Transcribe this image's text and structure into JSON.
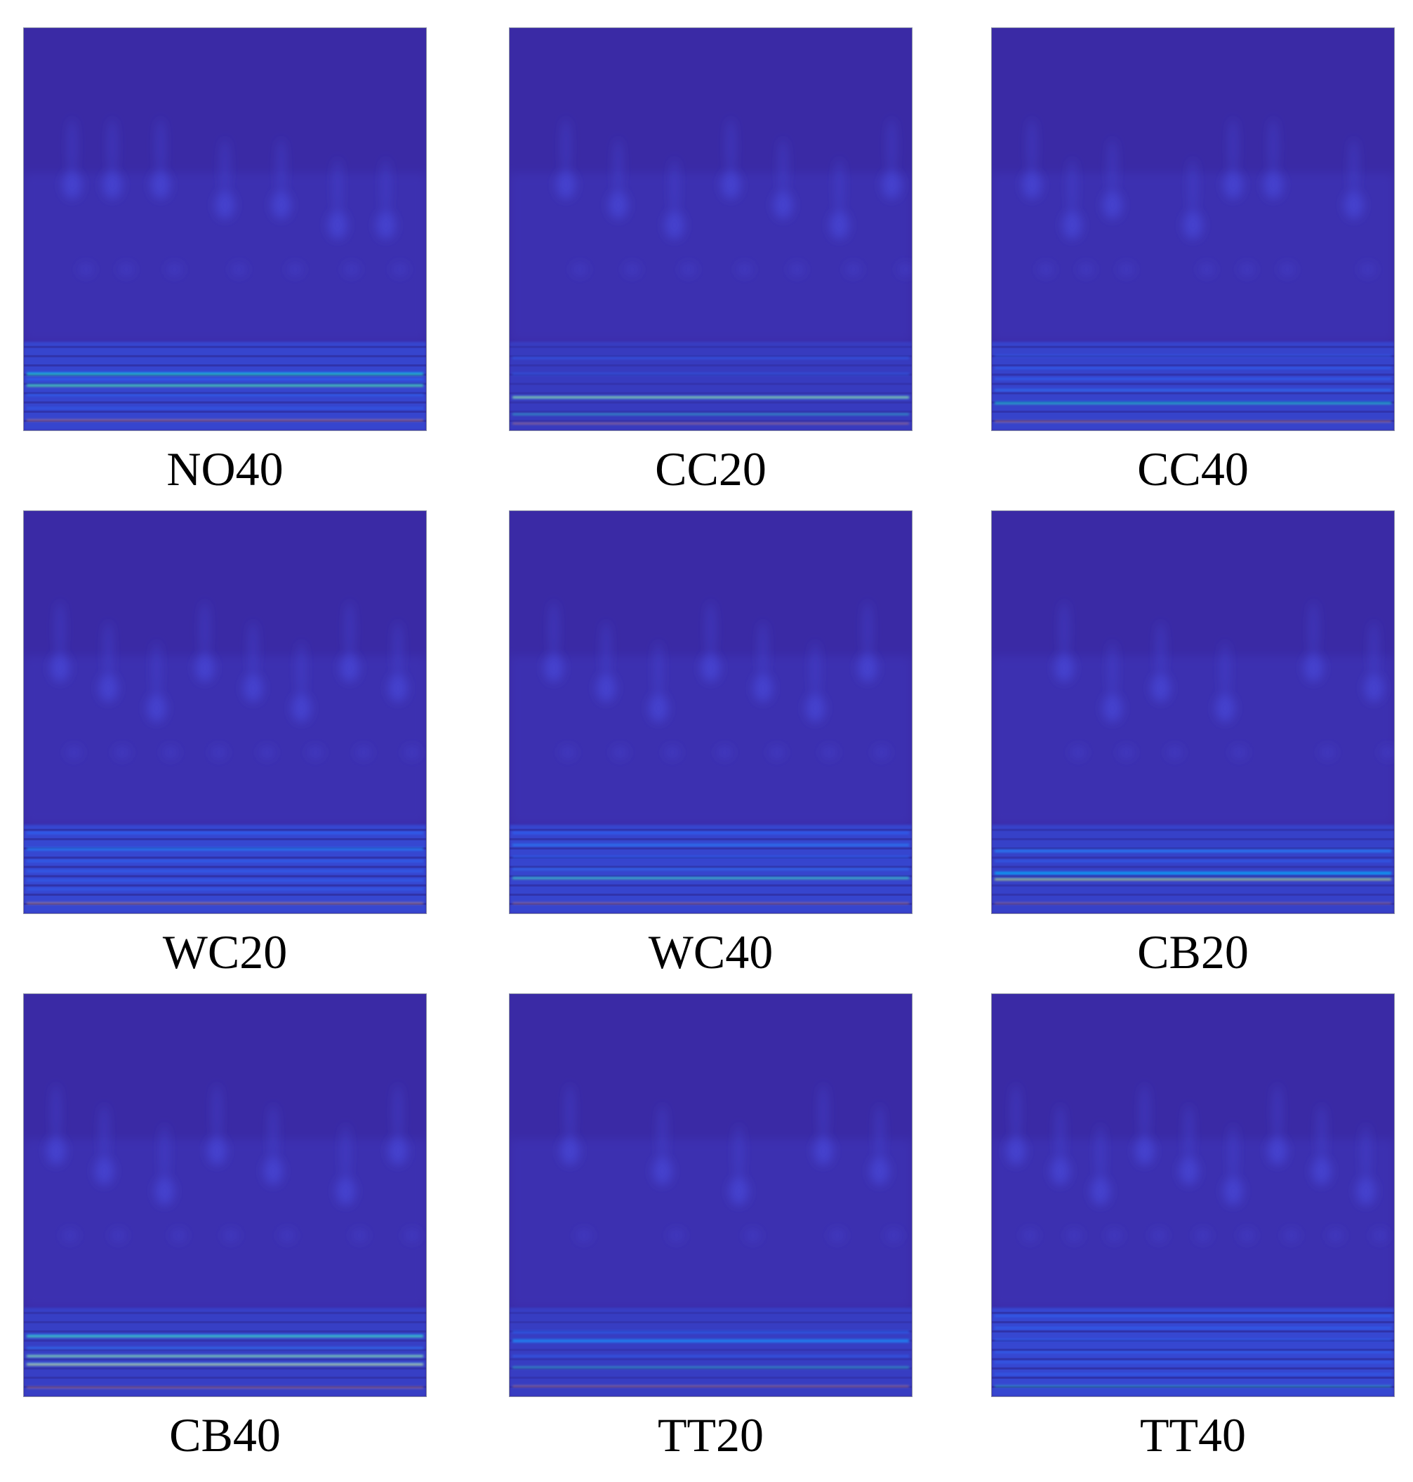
{
  "figure": {
    "panels": [
      {
        "label": "NO40",
        "rings": [
          0.22,
          0.5,
          0.78,
          0.34,
          0.64,
          0.9,
          0.12
        ],
        "band_layer": 0.7,
        "fine_layer": 0.55,
        "bands": [
          {
            "y": 0.859,
            "w": 0.006,
            "color": "#00a8ff",
            "opacity": 0.9
          },
          {
            "y": 0.861,
            "w": 0.0035,
            "color": "#2fd2a2",
            "opacity": 0.9
          },
          {
            "y": 0.873,
            "w": 0.004,
            "color": "#2b6cff",
            "opacity": 0.85
          },
          {
            "y": 0.888,
            "w": 0.006,
            "color": "#00a8ff",
            "opacity": 0.9
          },
          {
            "y": 0.889,
            "w": 0.0035,
            "color": "#5fe07a",
            "opacity": 0.95
          },
          {
            "y": 0.912,
            "w": 0.004,
            "color": "#2b6cff",
            "opacity": 0.7
          },
          {
            "y": 0.945,
            "w": 0.004,
            "color": "#2b6cff",
            "opacity": 0.55
          },
          {
            "y": 0.975,
            "w": 0.0025,
            "color": "#ff9a5a",
            "opacity": 0.8
          }
        ]
      },
      {
        "label": "CC20",
        "rings": [
          0.14,
          0.27,
          0.41,
          0.55,
          0.68,
          0.82,
          0.95
        ],
        "band_layer": 0.45,
        "fine_layer": 0.35,
        "bands": [
          {
            "y": 0.82,
            "w": 0.004,
            "color": "#2b6cff",
            "opacity": 0.6
          },
          {
            "y": 0.86,
            "w": 0.004,
            "color": "#2b6cff",
            "opacity": 0.6
          },
          {
            "y": 0.918,
            "w": 0.006,
            "color": "#00b4ff",
            "opacity": 0.9
          },
          {
            "y": 0.918,
            "w": 0.003,
            "color": "#b8f05a",
            "opacity": 0.95
          },
          {
            "y": 0.96,
            "w": 0.003,
            "color": "#2fd2c2",
            "opacity": 0.85
          },
          {
            "y": 0.983,
            "w": 0.002,
            "color": "#ff9a5a",
            "opacity": 0.7
          }
        ]
      },
      {
        "label": "CC40",
        "rings": [
          0.1,
          0.3,
          0.5,
          0.7,
          0.9,
          0.2,
          0.6
        ],
        "band_layer": 0.65,
        "fine_layer": 0.5,
        "bands": [
          {
            "y": 0.815,
            "w": 0.004,
            "color": "#2b6cff",
            "opacity": 0.6
          },
          {
            "y": 0.845,
            "w": 0.004,
            "color": "#2b6cff",
            "opacity": 0.7
          },
          {
            "y": 0.872,
            "w": 0.004,
            "color": "#2b6cff",
            "opacity": 0.75
          },
          {
            "y": 0.9,
            "w": 0.004,
            "color": "#2b80ff",
            "opacity": 0.8
          },
          {
            "y": 0.932,
            "w": 0.005,
            "color": "#00a8ff",
            "opacity": 0.9
          },
          {
            "y": 0.933,
            "w": 0.0025,
            "color": "#2fd2a2",
            "opacity": 0.9
          },
          {
            "y": 0.978,
            "w": 0.0025,
            "color": "#ff9a5a",
            "opacity": 0.75
          }
        ]
      },
      {
        "label": "WC20",
        "rings": [
          0.09,
          0.21,
          0.33,
          0.45,
          0.57,
          0.69,
          0.81,
          0.93
        ],
        "band_layer": 0.75,
        "fine_layer": 0.6,
        "bands": [
          {
            "y": 0.8,
            "w": 0.005,
            "color": "#2b6cff",
            "opacity": 0.7
          },
          {
            "y": 0.84,
            "w": 0.006,
            "color": "#1f8cff",
            "opacity": 0.8
          },
          {
            "y": 0.87,
            "w": 0.004,
            "color": "#2b6cff",
            "opacity": 0.75
          },
          {
            "y": 0.895,
            "w": 0.004,
            "color": "#2b6cff",
            "opacity": 0.7
          },
          {
            "y": 0.918,
            "w": 0.004,
            "color": "#2b6cff",
            "opacity": 0.65
          },
          {
            "y": 0.94,
            "w": 0.004,
            "color": "#2b6cff",
            "opacity": 0.6
          },
          {
            "y": 0.975,
            "w": 0.003,
            "color": "#ffb060",
            "opacity": 0.75
          }
        ]
      },
      {
        "label": "WC40",
        "rings": [
          0.11,
          0.24,
          0.37,
          0.5,
          0.63,
          0.76,
          0.89
        ],
        "band_layer": 0.7,
        "fine_layer": 0.55,
        "bands": [
          {
            "y": 0.8,
            "w": 0.005,
            "color": "#2b6cff",
            "opacity": 0.7
          },
          {
            "y": 0.83,
            "w": 0.005,
            "color": "#1f8cff",
            "opacity": 0.75
          },
          {
            "y": 0.86,
            "w": 0.004,
            "color": "#2b6cff",
            "opacity": 0.7
          },
          {
            "y": 0.89,
            "w": 0.004,
            "color": "#2b80ff",
            "opacity": 0.7
          },
          {
            "y": 0.912,
            "w": 0.005,
            "color": "#00a8ff",
            "opacity": 0.9
          },
          {
            "y": 0.913,
            "w": 0.0025,
            "color": "#5fe07a",
            "opacity": 0.9
          },
          {
            "y": 0.975,
            "w": 0.0025,
            "color": "#ff9a5a",
            "opacity": 0.7
          }
        ]
      },
      {
        "label": "CB20",
        "rings": [
          0.18,
          0.42,
          0.58,
          0.8,
          0.95,
          0.3
        ],
        "band_layer": 0.6,
        "fine_layer": 0.45,
        "bands": [
          {
            "y": 0.845,
            "w": 0.006,
            "color": "#1f8cff",
            "opacity": 0.8
          },
          {
            "y": 0.87,
            "w": 0.004,
            "color": "#2b6cff",
            "opacity": 0.7
          },
          {
            "y": 0.9,
            "w": 0.006,
            "color": "#00b4ff",
            "opacity": 0.9
          },
          {
            "y": 0.915,
            "w": 0.004,
            "color": "#2fd2c2",
            "opacity": 0.9
          },
          {
            "y": 0.916,
            "w": 0.0025,
            "color": "#e8f04a",
            "opacity": 0.95
          },
          {
            "y": 0.975,
            "w": 0.0025,
            "color": "#ff9a5a",
            "opacity": 0.6
          }
        ]
      },
      {
        "label": "CB40",
        "rings": [
          0.08,
          0.2,
          0.35,
          0.48,
          0.62,
          0.8,
          0.93
        ],
        "band_layer": 0.55,
        "fine_layer": 0.45,
        "bands": [
          {
            "y": 0.85,
            "w": 0.007,
            "color": "#00a8ff",
            "opacity": 0.9
          },
          {
            "y": 0.851,
            "w": 0.003,
            "color": "#5fe07a",
            "opacity": 0.9
          },
          {
            "y": 0.88,
            "w": 0.004,
            "color": "#2b80ff",
            "opacity": 0.8
          },
          {
            "y": 0.9,
            "w": 0.006,
            "color": "#00a8ff",
            "opacity": 0.9
          },
          {
            "y": 0.9,
            "w": 0.003,
            "color": "#b8f05a",
            "opacity": 0.9
          },
          {
            "y": 0.92,
            "w": 0.006,
            "color": "#00b4ff",
            "opacity": 0.9
          },
          {
            "y": 0.921,
            "w": 0.003,
            "color": "#e8f04a",
            "opacity": 0.95
          },
          {
            "y": 0.978,
            "w": 0.0025,
            "color": "#ff9a5a",
            "opacity": 0.7
          }
        ]
      },
      {
        "label": "TT20",
        "rings": [
          0.15,
          0.38,
          0.57,
          0.78,
          0.92
        ],
        "band_layer": 0.5,
        "fine_layer": 0.35,
        "bands": [
          {
            "y": 0.84,
            "w": 0.005,
            "color": "#2b6cff",
            "opacity": 0.7
          },
          {
            "y": 0.862,
            "w": 0.007,
            "color": "#1f90ff",
            "opacity": 0.9
          },
          {
            "y": 0.9,
            "w": 0.004,
            "color": "#2b6cff",
            "opacity": 0.65
          },
          {
            "y": 0.928,
            "w": 0.003,
            "color": "#2fd2c2",
            "opacity": 0.85
          },
          {
            "y": 0.975,
            "w": 0.0025,
            "color": "#ff9a5a",
            "opacity": 0.7
          }
        ]
      },
      {
        "label": "TT40",
        "rings": [
          0.06,
          0.17,
          0.27,
          0.38,
          0.49,
          0.6,
          0.71,
          0.82,
          0.93
        ],
        "band_layer": 0.75,
        "fine_layer": 0.6,
        "bands": [
          {
            "y": 0.8,
            "w": 0.004,
            "color": "#2b6cff",
            "opacity": 0.7
          },
          {
            "y": 0.83,
            "w": 0.004,
            "color": "#2b6cff",
            "opacity": 0.7
          },
          {
            "y": 0.86,
            "w": 0.004,
            "color": "#2b6cff",
            "opacity": 0.65
          },
          {
            "y": 0.89,
            "w": 0.004,
            "color": "#2b6cff",
            "opacity": 0.65
          },
          {
            "y": 0.915,
            "w": 0.004,
            "color": "#2b6cff",
            "opacity": 0.6
          },
          {
            "y": 0.945,
            "w": 0.004,
            "color": "#2b6cff",
            "opacity": 0.55
          },
          {
            "y": 0.975,
            "w": 0.003,
            "color": "#2fd2c2",
            "opacity": 0.8
          }
        ]
      }
    ],
    "colors": {
      "background": "#3a2aa5",
      "blob": "#4a4ee6",
      "band_base": "#3451e0",
      "ripple": "#2c2590"
    }
  }
}
